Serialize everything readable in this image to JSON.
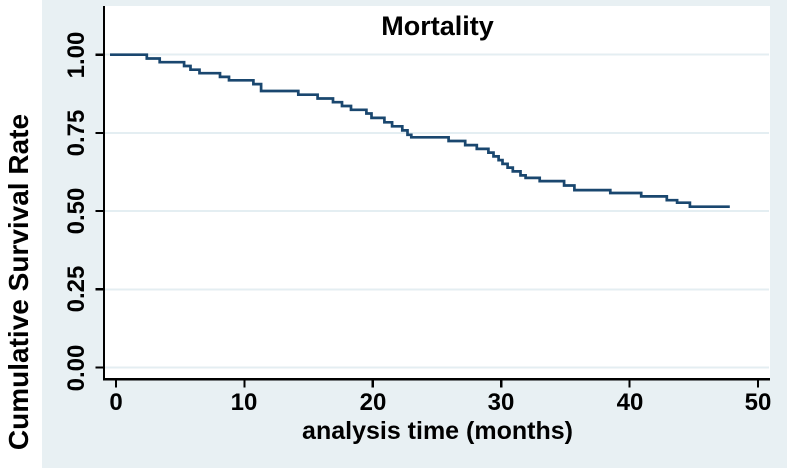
{
  "figure": {
    "title": "Mortality",
    "y_axis": {
      "title": "Cumulative Survival Rate",
      "tick_labels": [
        "1.00",
        "0.75",
        "0.50",
        "0.25",
        "0.00"
      ]
    },
    "x_axis": {
      "title": "analysis time (months)",
      "tick_labels": [
        "0",
        "10",
        "20",
        "30",
        "40",
        "50"
      ]
    },
    "colors": {
      "curve": "#1a476f",
      "graph_background": "#e8f0f3",
      "plot_background": "#ffffff",
      "gridline": "#e4eef2",
      "axis": "#000000",
      "text": "#000000"
    }
  },
  "chart_data": {
    "type": "line",
    "subtype": "kaplan_meier_step",
    "title": "Mortality",
    "xlabel": "analysis time (months)",
    "ylabel": "Cumulative Survival Rate",
    "xlim": [
      0,
      50
    ],
    "ylim": [
      0,
      1
    ],
    "x_ticks": [
      0,
      10,
      20,
      30,
      40,
      50
    ],
    "y_ticks": [
      1,
      0.75,
      0.5,
      0.25,
      0
    ],
    "grid": true,
    "legend": false,
    "series": [
      {
        "name": "Cumulative survival rate",
        "color": "#1a476f",
        "start": [
          0,
          1.0
        ],
        "steps": [
          [
            2.4,
            0.988
          ],
          [
            3.4,
            0.976
          ],
          [
            5.3,
            0.964
          ],
          [
            5.8,
            0.952
          ],
          [
            6.5,
            0.941
          ],
          [
            8.1,
            0.929
          ],
          [
            8.8,
            0.918
          ],
          [
            10.7,
            0.906
          ],
          [
            11.3,
            0.884
          ],
          [
            14.2,
            0.872
          ],
          [
            15.7,
            0.86
          ],
          [
            16.9,
            0.848
          ],
          [
            17.6,
            0.836
          ],
          [
            18.3,
            0.824
          ],
          [
            19.5,
            0.812
          ],
          [
            19.9,
            0.798
          ],
          [
            20.9,
            0.784
          ],
          [
            21.5,
            0.771
          ],
          [
            22.3,
            0.758
          ],
          [
            22.7,
            0.744
          ],
          [
            23.0,
            0.736
          ],
          [
            25.9,
            0.724
          ],
          [
            27.2,
            0.711
          ],
          [
            28.1,
            0.699
          ],
          [
            29.0,
            0.687
          ],
          [
            29.4,
            0.675
          ],
          [
            29.8,
            0.663
          ],
          [
            30.1,
            0.651
          ],
          [
            30.5,
            0.639
          ],
          [
            30.9,
            0.627
          ],
          [
            31.5,
            0.614
          ],
          [
            31.9,
            0.606
          ],
          [
            33.0,
            0.596
          ],
          [
            34.9,
            0.582
          ],
          [
            35.7,
            0.567
          ],
          [
            38.5,
            0.558
          ],
          [
            40.9,
            0.547
          ],
          [
            42.9,
            0.535
          ],
          [
            43.7,
            0.527
          ],
          [
            44.7,
            0.514
          ]
        ],
        "end_time": 47.8,
        "final_value": 0.514
      }
    ]
  }
}
